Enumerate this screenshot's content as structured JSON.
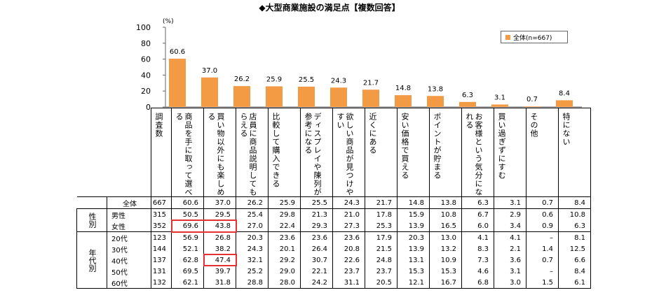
{
  "title": "◆大型商業施設の満足点【複数回答】",
  "chart_data": {
    "type": "bar",
    "unit_label": "(%)",
    "ylim": [
      0,
      100
    ],
    "yticks": [
      0,
      20,
      40,
      60,
      80,
      100
    ],
    "legend": "全体(n=667)",
    "legend_position": "top-right",
    "bar_color": "#F39A45",
    "categories": [
      "商品を手に取って選べる",
      "買い物以外にも楽しめる",
      "店員に商品説明してもらえる",
      "比較して購入できる",
      "ディスプレイや陳列が参考になる",
      "欲しい商品が見つけやすい",
      "近くにある",
      "安い価格で買える",
      "ポイントが貯まる",
      "お客様という気分になれる",
      "買い過ぎずにすむ",
      "その他",
      "特にない"
    ],
    "values": [
      60.6,
      37.0,
      26.2,
      25.9,
      25.5,
      24.3,
      21.7,
      14.8,
      13.8,
      6.3,
      3.1,
      0.7,
      8.4
    ],
    "value_labels": [
      "60.6",
      "37.0",
      "26.2",
      "25.9",
      "25.5",
      "24.3",
      "21.7",
      "14.8",
      "13.8",
      "6.3",
      "3.1",
      "0.7",
      "8.4"
    ]
  },
  "table": {
    "count_header": "調査数",
    "headers": [
      "商品を手に取って選べる",
      "買い物以外にも楽しめる",
      "店員に商品説明してもらえる",
      "比較して購入できる",
      "ディスプレイや陳列が参考になる",
      "欲しい商品が見つけやすい",
      "近くにある",
      "安い価格で買える",
      "ポイントが貯まる",
      "お客様という気分になれる",
      "買い過ぎずにすむ",
      "その他",
      "特にない"
    ],
    "groups": [
      {
        "label": "",
        "rows": [
          {
            "label": "全体",
            "n": "667",
            "values": [
              "60.6",
              "37.0",
              "26.2",
              "25.9",
              "25.5",
              "24.3",
              "21.7",
              "14.8",
              "13.8",
              "6.3",
              "3.1",
              "0.7",
              "8.4"
            ]
          }
        ]
      },
      {
        "label": "性別",
        "rows": [
          {
            "label": "男性",
            "n": "315",
            "values": [
              "50.5",
              "29.5",
              "25.4",
              "29.8",
              "21.3",
              "21.0",
              "17.8",
              "15.9",
              "10.8",
              "6.7",
              "2.9",
              "0.6",
              "10.8"
            ]
          },
          {
            "label": "女性",
            "n": "352",
            "values": [
              "69.6",
              "43.8",
              "27.0",
              "22.4",
              "29.3",
              "27.3",
              "25.3",
              "13.9",
              "16.5",
              "6.0",
              "3.4",
              "0.9",
              "6.3"
            ]
          }
        ]
      },
      {
        "label": "年代別",
        "rows": [
          {
            "label": "20代",
            "n": "123",
            "values": [
              "56.9",
              "26.8",
              "20.3",
              "23.6",
              "23.6",
              "23.6",
              "17.9",
              "20.3",
              "13.0",
              "4.1",
              "4.1",
              "–",
              "8.1"
            ]
          },
          {
            "label": "30代",
            "n": "144",
            "values": [
              "52.1",
              "38.2",
              "24.3",
              "20.1",
              "26.4",
              "20.8",
              "21.5",
              "13.9",
              "13.2",
              "8.3",
              "2.1",
              "1.4",
              "12.5"
            ]
          },
          {
            "label": "40代",
            "n": "137",
            "values": [
              "62.8",
              "47.4",
              "32.1",
              "29.2",
              "30.7",
              "22.6",
              "24.8",
              "13.1",
              "10.9",
              "7.3",
              "3.6",
              "0.7",
              "6.6"
            ]
          },
          {
            "label": "50代",
            "n": "131",
            "values": [
              "69.5",
              "39.7",
              "25.2",
              "29.0",
              "22.1",
              "23.7",
              "23.7",
              "15.3",
              "15.3",
              "4.6",
              "3.1",
              "–",
              "8.4"
            ]
          },
          {
            "label": "60代",
            "n": "132",
            "values": [
              "62.1",
              "31.8",
              "28.8",
              "28.0",
              "24.2",
              "31.1",
              "20.5",
              "12.1",
              "16.7",
              "6.8",
              "3.0",
              "1.5",
              "6.1"
            ]
          }
        ]
      }
    ]
  },
  "highlights": [
    "女性: 商品を手に取って選べる, 買い物以外にも楽しめる",
    "40代: 買い物以外にも楽しめる"
  ]
}
